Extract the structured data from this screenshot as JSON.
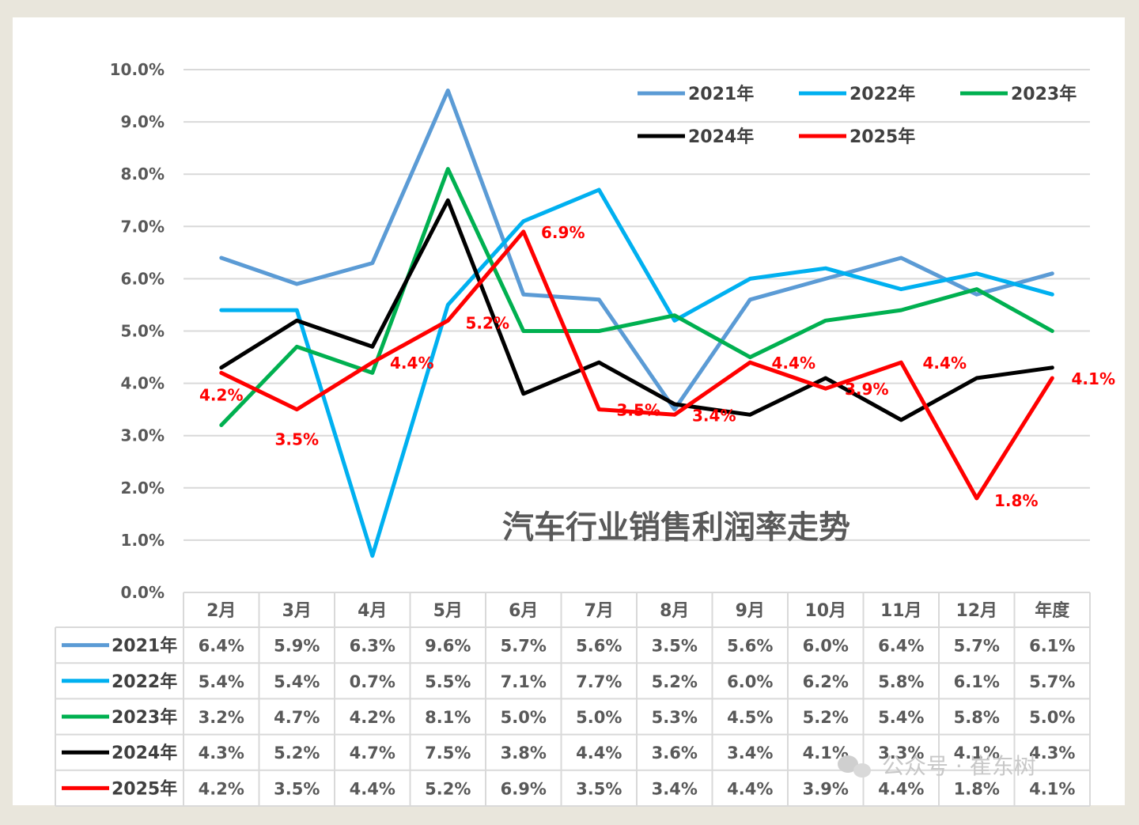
{
  "watermark": "公众号 · 崔东树",
  "chart_data": {
    "type": "line",
    "title": "汽车行业销售利润率走势",
    "categories": [
      "2月",
      "3月",
      "4月",
      "5月",
      "6月",
      "7月",
      "8月",
      "9月",
      "10月",
      "11月",
      "12月",
      "年度"
    ],
    "y_ticks": [
      "0.0%",
      "1.0%",
      "2.0%",
      "3.0%",
      "4.0%",
      "5.0%",
      "6.0%",
      "7.0%",
      "8.0%",
      "9.0%",
      "10.0%"
    ],
    "ylim": [
      0,
      10
    ],
    "grid": true,
    "legend_position": "top-right",
    "series": [
      {
        "name": "2021年",
        "color": "#5b9bd5",
        "values": [
          6.4,
          5.9,
          6.3,
          9.6,
          5.7,
          5.6,
          3.5,
          5.6,
          6.0,
          6.4,
          5.7,
          6.1
        ],
        "labels": [
          "6.4%",
          "5.9%",
          "6.3%",
          "9.6%",
          "5.7%",
          "5.6%",
          "3.5%",
          "5.6%",
          "6.0%",
          "6.4%",
          "5.7%",
          "6.1%"
        ]
      },
      {
        "name": "2022年",
        "color": "#00b0f0",
        "values": [
          5.4,
          5.4,
          0.7,
          5.5,
          7.1,
          7.7,
          5.2,
          6.0,
          6.2,
          5.8,
          6.1,
          5.7
        ],
        "labels": [
          "5.4%",
          "5.4%",
          "0.7%",
          "5.5%",
          "7.1%",
          "7.7%",
          "5.2%",
          "6.0%",
          "6.2%",
          "5.8%",
          "6.1%",
          "5.7%"
        ]
      },
      {
        "name": "2023年",
        "color": "#00b050",
        "values": [
          3.2,
          4.7,
          4.2,
          8.1,
          5.0,
          5.0,
          5.3,
          4.5,
          5.2,
          5.4,
          5.8,
          5.0
        ],
        "labels": [
          "3.2%",
          "4.7%",
          "4.2%",
          "8.1%",
          "5.0%",
          "5.0%",
          "5.3%",
          "4.5%",
          "5.2%",
          "5.4%",
          "5.8%",
          "5.0%"
        ]
      },
      {
        "name": "2024年",
        "color": "#000000",
        "values": [
          4.3,
          5.2,
          4.7,
          7.5,
          3.8,
          4.4,
          3.6,
          3.4,
          4.1,
          3.3,
          4.1,
          4.3
        ],
        "labels": [
          "4.3%",
          "5.2%",
          "4.7%",
          "7.5%",
          "3.8%",
          "4.4%",
          "3.6%",
          "3.4%",
          "4.1%",
          "3.3%",
          "4.1%",
          "4.3%"
        ]
      },
      {
        "name": "2025年",
        "color": "#ff0000",
        "values": [
          4.2,
          3.5,
          4.4,
          5.2,
          6.9,
          3.5,
          3.4,
          4.4,
          3.9,
          4.4,
          1.8,
          4.1
        ],
        "labels": [
          "4.2%",
          "3.5%",
          "4.4%",
          "5.2%",
          "6.9%",
          "3.5%",
          "3.4%",
          "4.4%",
          "3.9%",
          "4.4%",
          "1.8%",
          "4.1%"
        ],
        "show_data_labels": true
      }
    ]
  }
}
